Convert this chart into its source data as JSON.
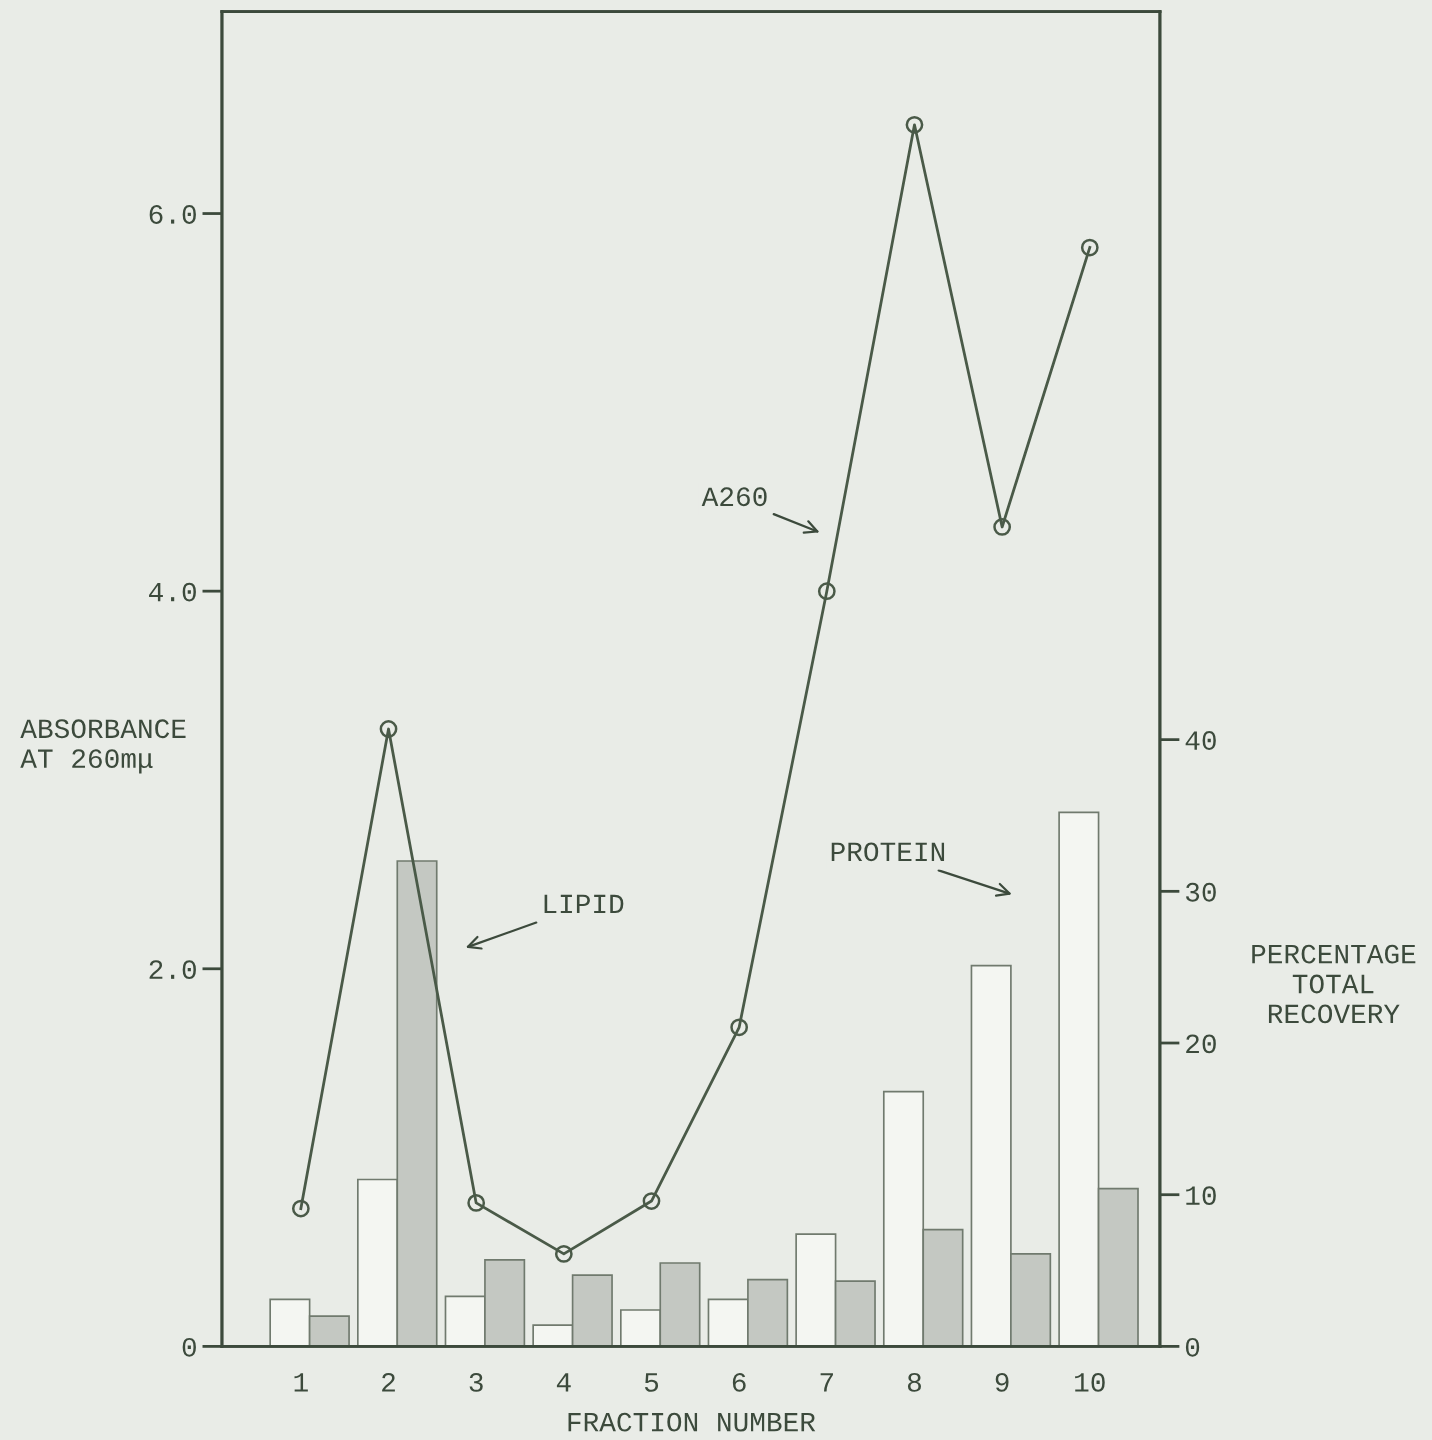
{
  "chart_data": {
    "type": "bar",
    "xlabel": "FRACTION NUMBER",
    "ylabel": "ABSORBANCE\nAT 260mμ",
    "y2label": "PERCENTAGE\nTOTAL\nRECOVERY",
    "categories": [
      "1",
      "2",
      "3",
      "4",
      "5",
      "6",
      "7",
      "8",
      "9",
      "10"
    ],
    "series": [
      {
        "type": "line",
        "color": "#4a5a48",
        "marker": "circle",
        "values": [
          0.73,
          3.27,
          0.76,
          0.49,
          0.77,
          1.69,
          4.0,
          6.47,
          4.34,
          5.82
        ]
      },
      {
        "axis": "y2",
        "color": "#f4f6f2",
        "values": [
          3.1,
          11.0,
          3.3,
          1.4,
          2.4,
          3.1,
          7.4,
          16.8,
          25.1,
          35.2
        ]
      },
      {
        "axis": "y2",
        "color": "#c4c8c2",
        "values": [
          2.0,
          32.0,
          5.7,
          4.7,
          5.5,
          4.4,
          4.3,
          7.7,
          6.1,
          10.4
        ]
      }
    ],
    "ylim": [
      0,
      7.07
    ],
    "yticks": [
      {
        "value": 0,
        "label": "0"
      },
      {
        "value": 2,
        "label": "2.0"
      },
      {
        "value": 4,
        "label": "4.0"
      },
      {
        "value": 6,
        "label": "6.0"
      }
    ],
    "y2lim": [
      0,
      88
    ],
    "y2ticks": [
      0,
      10,
      20,
      30,
      40
    ],
    "annotations": [
      "A260",
      "LIPID",
      "PROTEIN"
    ],
    "grid": false,
    "legend": false
  }
}
